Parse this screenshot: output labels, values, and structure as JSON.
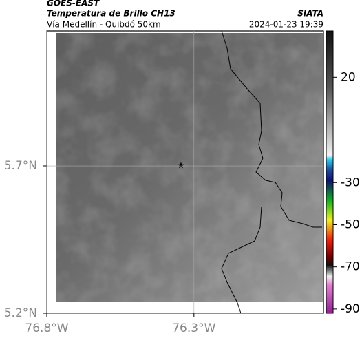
{
  "header": {
    "source": "GOES-EAST",
    "product": "Temperatura de Brillo CH13",
    "region": "Vía Medellín - Quibdó 50km",
    "credit": "SIATA",
    "datetime": "2024-01-23 19:39"
  },
  "map": {
    "latlim": [
      5.2,
      6.158
    ],
    "lonlim": [
      -76.8,
      -75.86
    ],
    "lat_ticks": [
      {
        "value": 5.7,
        "label": "5.7°N"
      },
      {
        "value": 5.2,
        "label": "5.2°N"
      }
    ],
    "lon_ticks": [
      {
        "value": -76.8,
        "label": "76.8°W"
      },
      {
        "value": -76.3,
        "label": "76.3°W"
      }
    ]
  },
  "colorbar": {
    "lim": [
      -92,
      42
    ],
    "ticks": [
      20,
      -30,
      -50,
      -70,
      -90
    ]
  }
}
